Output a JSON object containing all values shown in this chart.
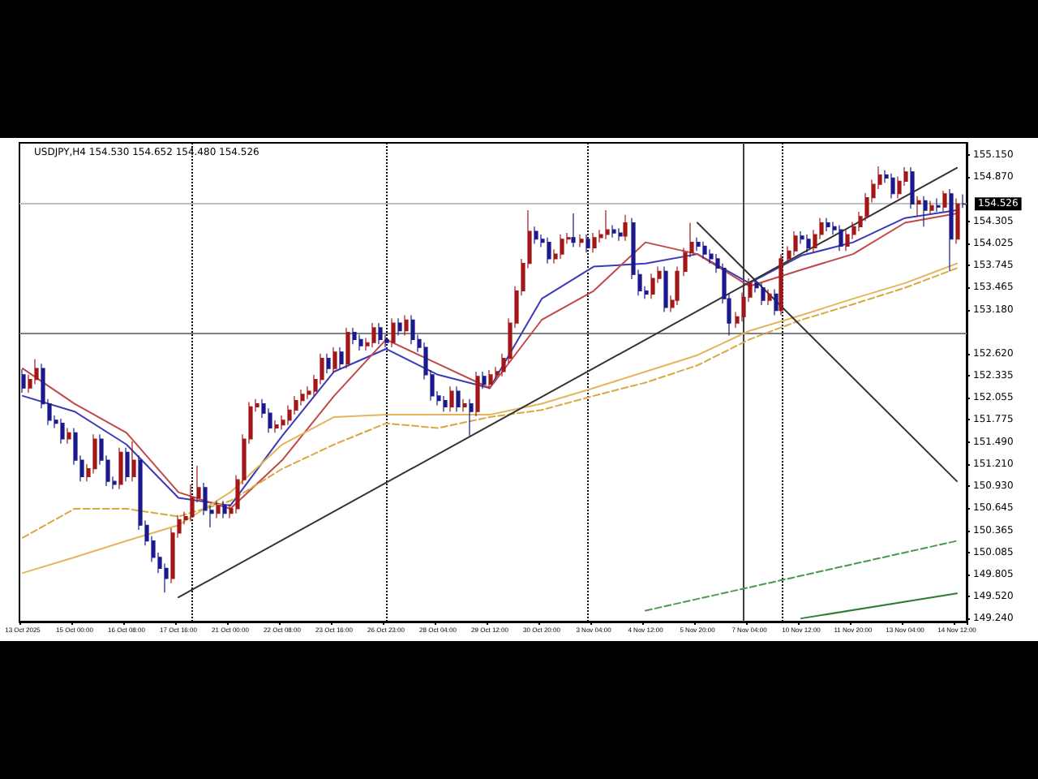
{
  "chart_data": {
    "type": "candlestick",
    "title": "USDJPY,H4 154.530 154.652 154.480 154.526",
    "categories": [
      "13 Oct 2025",
      null,
      null,
      null,
      null,
      null,
      null,
      null,
      "15 Oct 00:00",
      null,
      null,
      null,
      null,
      null,
      null,
      null,
      "16 Oct 08:00",
      null,
      null,
      null,
      null,
      null,
      null,
      null,
      "17 Oct 16:00",
      null,
      null,
      null,
      null,
      null,
      null,
      null,
      "21 Oct 00:00",
      null,
      null,
      null,
      null,
      null,
      null,
      null,
      "22 Oct 08:00",
      null,
      null,
      null,
      null,
      null,
      null,
      null,
      "23 Oct 16:00",
      null,
      null,
      null,
      null,
      null,
      null,
      null,
      "26 Oct 23:00",
      null,
      null,
      null,
      null,
      null,
      null,
      null,
      "28 Oct 04:00",
      null,
      null,
      null,
      null,
      null,
      null,
      null,
      "29 Oct 12:00",
      null,
      null,
      null,
      null,
      null,
      null,
      null,
      "30 Oct 20:00",
      null,
      null,
      null,
      null,
      null,
      null,
      null,
      "3 Nov 04:00",
      null,
      null,
      null,
      null,
      null,
      null,
      null,
      "4 Nov 12:00",
      null,
      null,
      null,
      null,
      null,
      null,
      null,
      "5 Nov 20:00",
      null,
      null,
      null,
      null,
      null,
      null,
      null,
      "7 Nov 04:00",
      null,
      null,
      null,
      null,
      null,
      null,
      null,
      "10 Nov 12:00",
      null,
      null,
      null,
      null,
      null,
      null,
      null,
      "11 Nov 20:00",
      null,
      null,
      null,
      null,
      null,
      null,
      null,
      "13 Nov 04:00",
      null,
      null,
      null,
      null,
      null,
      null,
      null,
      "14 Nov 12:00",
      null
    ],
    "colors": [
      "#1a1a8c",
      "#a01818",
      "#a01818",
      "#1a1a8c",
      "#1a1a8c",
      "#1a1a8c",
      "#1a1a8c",
      "#a01818",
      "#1a1a8c",
      "#1a1a8c",
      "#a01818",
      "#a01818",
      "#1a1a8c",
      "#1a1a8c",
      "#1a1a8c",
      "#a01818",
      "#1a1a8c",
      "#a01818",
      "#1a1a8c",
      "#1a1a8c",
      "#1a1a8c",
      "#1a1a8c",
      "#1a1a8c",
      "#a01818",
      "#a01818",
      "#a01818",
      "#a01818",
      "#a01818",
      "#1a1a8c",
      "#1a1a8c",
      "#a01818",
      "#1a1a8c",
      "#a01818",
      "#a01818",
      "#a01818",
      "#a01818",
      "#a01818",
      "#1a1a8c",
      "#1a1a8c",
      "#a01818",
      "#a01818",
      "#a01818",
      "#a01818",
      "#a01818",
      "#a01818",
      "#a01818",
      "#a01818",
      "#1a1a8c",
      "#a01818",
      "#1a1a8c",
      "#a01818",
      "#1a1a8c",
      "#1a1a8c",
      "#a01818",
      "#a01818",
      "#1a1a8c",
      "#1a1a8c",
      "#a01818",
      "#1a1a8c",
      "#a01818",
      "#1a1a8c",
      "#1a1a8c",
      "#1a1a8c",
      "#1a1a8c",
      "#1a1a8c",
      "#1a1a8c",
      "#a01818",
      "#1a1a8c",
      "#a01818",
      "#1a1a8c",
      "#a01818",
      "#1a1a8c",
      "#a01818",
      "#a01818",
      "#a01818",
      "#a01818",
      "#a01818",
      "#a01818",
      "#a01818",
      "#1a1a8c",
      "#1a1a8c",
      "#1a1a8c",
      "#a01818",
      "#a01818",
      "#a01818",
      "#1a1a8c",
      "#a01818",
      "#1a1a8c",
      "#a01818",
      "#a01818",
      "#a01818",
      "#1a1a8c",
      "#1a1a8c",
      "#a01818",
      "#1a1a8c",
      "#1a1a8c",
      "#1a1a8c",
      "#a01818",
      "#a01818",
      "#1a1a8c",
      "#a01818",
      "#a01818",
      "#a01818",
      "#a01818",
      "#1a1a8c",
      "#1a1a8c",
      "#1a1a8c",
      "#1a1a8c",
      "#1a1a8c",
      "#1a1a8c",
      "#a01818",
      "#a01818",
      "#a01818",
      "#1a1a8c",
      "#1a1a8c",
      "#a01818",
      "#1a1a8c",
      "#a01818",
      "#a01818",
      "#a01818",
      "#1a1a8c",
      "#1a1a8c",
      "#a01818",
      "#a01818",
      "#1a1a8c",
      "#1a1a8c",
      "#1a1a8c",
      "#a01818",
      "#a01818",
      "#a01818",
      "#a01818",
      "#a01818",
      "#a01818",
      "#1a1a8c",
      "#1a1a8c",
      "#a01818",
      "#a01818",
      "#1a1a8c",
      "#a01818",
      "#1a1a8c",
      "#a01818",
      "#1a1a8c",
      "#a01818",
      "#1a1a8c",
      "#a01818",
      "#1a1a8c"
    ],
    "ohlc": [
      [
        152.35,
        152.42,
        152.12,
        152.18
      ],
      [
        152.18,
        152.35,
        152.12,
        152.29
      ],
      [
        152.29,
        152.55,
        152.23,
        152.43
      ],
      [
        152.43,
        152.49,
        151.92,
        151.98
      ],
      [
        151.98,
        152.04,
        151.71,
        151.77
      ],
      [
        151.77,
        151.83,
        151.67,
        151.73
      ],
      [
        151.73,
        151.79,
        151.47,
        151.53
      ],
      [
        151.53,
        151.67,
        151.47,
        151.61
      ],
      [
        151.61,
        151.67,
        151.2,
        151.26
      ],
      [
        151.26,
        151.32,
        150.99,
        151.05
      ],
      [
        151.05,
        151.21,
        150.99,
        151.15
      ],
      [
        151.15,
        151.59,
        151.09,
        151.53
      ],
      [
        151.53,
        151.59,
        151.2,
        151.26
      ],
      [
        151.26,
        151.32,
        150.93,
        150.99
      ],
      [
        150.99,
        151.05,
        150.89,
        150.95
      ],
      [
        150.95,
        151.42,
        150.89,
        151.36
      ],
      [
        151.36,
        151.42,
        150.99,
        151.05
      ],
      [
        151.05,
        151.5,
        150.99,
        151.26
      ],
      [
        151.26,
        151.32,
        150.37,
        150.43
      ],
      [
        150.43,
        150.49,
        150.17,
        150.23
      ],
      [
        150.23,
        150.29,
        149.96,
        150.02
      ],
      [
        150.02,
        150.08,
        149.82,
        149.88
      ],
      [
        149.88,
        149.94,
        149.57,
        149.75
      ],
      [
        149.75,
        150.39,
        149.69,
        150.33
      ],
      [
        150.33,
        150.56,
        150.27,
        150.5
      ],
      [
        150.5,
        150.6,
        150.44,
        150.54
      ],
      [
        150.54,
        150.95,
        150.48,
        150.78
      ],
      [
        150.78,
        151.19,
        150.72,
        150.91
      ],
      [
        150.91,
        150.97,
        150.56,
        150.62
      ],
      [
        150.62,
        150.68,
        150.4,
        150.58
      ],
      [
        150.58,
        150.74,
        150.52,
        150.68
      ],
      [
        150.68,
        150.74,
        150.52,
        150.58
      ],
      [
        150.58,
        150.7,
        150.52,
        150.64
      ],
      [
        150.64,
        151.07,
        150.58,
        151.01
      ],
      [
        151.01,
        151.59,
        150.95,
        151.53
      ],
      [
        151.53,
        152.0,
        151.47,
        151.94
      ],
      [
        151.94,
        152.04,
        151.88,
        151.98
      ],
      [
        151.98,
        152.04,
        151.8,
        151.86
      ],
      [
        151.86,
        151.92,
        151.61,
        151.67
      ],
      [
        151.67,
        151.77,
        151.61,
        151.71
      ],
      [
        151.71,
        151.83,
        151.65,
        151.77
      ],
      [
        151.77,
        151.96,
        151.71,
        151.9
      ],
      [
        151.9,
        152.08,
        151.84,
        152.02
      ],
      [
        152.02,
        152.16,
        151.96,
        152.1
      ],
      [
        152.1,
        152.2,
        152.04,
        152.14
      ],
      [
        152.14,
        152.35,
        152.08,
        152.29
      ],
      [
        152.29,
        152.62,
        152.23,
        152.56
      ],
      [
        152.56,
        152.62,
        152.37,
        152.43
      ],
      [
        152.43,
        152.7,
        152.37,
        152.64
      ],
      [
        152.64,
        152.7,
        152.43,
        152.49
      ],
      [
        152.49,
        152.95,
        152.43,
        152.89
      ],
      [
        152.89,
        152.95,
        152.74,
        152.8
      ],
      [
        152.8,
        152.86,
        152.66,
        152.72
      ],
      [
        152.72,
        152.82,
        152.66,
        152.76
      ],
      [
        152.76,
        153.01,
        152.7,
        152.95
      ],
      [
        152.95,
        153.01,
        152.74,
        152.8
      ],
      [
        152.8,
        152.86,
        152.7,
        152.76
      ],
      [
        152.76,
        153.07,
        152.7,
        153.01
      ],
      [
        153.01,
        153.07,
        152.85,
        152.91
      ],
      [
        152.91,
        153.11,
        152.85,
        153.05
      ],
      [
        153.05,
        153.11,
        152.74,
        152.8
      ],
      [
        152.8,
        152.86,
        152.64,
        152.7
      ],
      [
        152.7,
        152.76,
        152.29,
        152.35
      ],
      [
        152.35,
        152.41,
        152.02,
        152.08
      ],
      [
        152.08,
        152.14,
        151.96,
        152.02
      ],
      [
        152.02,
        152.08,
        151.88,
        151.94
      ],
      [
        151.94,
        152.2,
        151.88,
        152.14
      ],
      [
        152.14,
        152.2,
        151.88,
        151.94
      ],
      [
        151.94,
        152.04,
        151.88,
        151.98
      ],
      [
        151.98,
        152.04,
        151.57,
        151.88
      ],
      [
        151.88,
        152.39,
        151.82,
        152.33
      ],
      [
        152.33,
        152.39,
        152.17,
        152.23
      ],
      [
        152.23,
        152.41,
        152.17,
        152.35
      ],
      [
        152.35,
        152.45,
        152.29,
        152.39
      ],
      [
        152.39,
        152.62,
        152.33,
        152.56
      ],
      [
        152.56,
        153.07,
        152.5,
        153.01
      ],
      [
        153.01,
        153.48,
        152.95,
        153.42
      ],
      [
        153.42,
        153.83,
        153.36,
        153.77
      ],
      [
        153.77,
        154.45,
        153.71,
        154.18
      ],
      [
        154.18,
        154.24,
        154.02,
        154.08
      ],
      [
        154.08,
        154.14,
        153.98,
        154.04
      ],
      [
        154.04,
        154.1,
        153.77,
        153.83
      ],
      [
        153.83,
        153.95,
        153.77,
        153.89
      ],
      [
        153.89,
        154.14,
        153.83,
        154.08
      ],
      [
        154.08,
        154.16,
        154.02,
        154.1
      ],
      [
        154.1,
        154.41,
        153.98,
        154.04
      ],
      [
        154.04,
        154.14,
        153.98,
        154.08
      ],
      [
        154.08,
        154.14,
        153.91,
        153.97
      ],
      [
        153.97,
        154.16,
        153.91,
        154.1
      ],
      [
        154.1,
        154.2,
        154.04,
        154.14
      ],
      [
        154.14,
        154.45,
        154.08,
        154.2
      ],
      [
        154.2,
        154.26,
        154.1,
        154.16
      ],
      [
        154.16,
        154.22,
        154.06,
        154.12
      ],
      [
        154.12,
        154.39,
        154.06,
        154.29
      ],
      [
        154.29,
        154.35,
        153.57,
        153.63
      ],
      [
        153.63,
        153.69,
        153.36,
        153.42
      ],
      [
        153.42,
        153.48,
        153.32,
        153.38
      ],
      [
        153.38,
        153.64,
        153.32,
        153.58
      ],
      [
        153.58,
        153.73,
        153.52,
        153.67
      ],
      [
        153.67,
        153.73,
        153.15,
        153.21
      ],
      [
        153.21,
        153.36,
        153.15,
        153.3
      ],
      [
        153.3,
        153.73,
        153.24,
        153.67
      ],
      [
        153.67,
        153.97,
        153.61,
        153.91
      ],
      [
        153.91,
        154.29,
        153.85,
        154.04
      ],
      [
        154.04,
        154.1,
        153.93,
        153.99
      ],
      [
        153.99,
        154.05,
        153.83,
        153.89
      ],
      [
        153.89,
        153.95,
        153.77,
        153.83
      ],
      [
        153.83,
        153.89,
        153.65,
        153.71
      ],
      [
        153.71,
        153.77,
        153.26,
        153.32
      ],
      [
        153.32,
        153.38,
        152.85,
        153.01
      ],
      [
        153.01,
        153.15,
        152.95,
        153.09
      ],
      [
        153.09,
        153.4,
        153.03,
        153.34
      ],
      [
        153.34,
        153.58,
        153.28,
        153.52
      ],
      [
        153.52,
        153.58,
        153.4,
        153.46
      ],
      [
        153.46,
        153.52,
        153.24,
        153.3
      ],
      [
        153.3,
        153.44,
        153.24,
        153.38
      ],
      [
        153.38,
        153.44,
        153.11,
        153.17
      ],
      [
        153.17,
        153.89,
        153.11,
        153.83
      ],
      [
        153.83,
        153.99,
        153.77,
        153.93
      ],
      [
        153.93,
        154.18,
        153.87,
        154.12
      ],
      [
        154.12,
        154.18,
        154.02,
        154.08
      ],
      [
        154.08,
        154.14,
        153.91,
        153.97
      ],
      [
        153.97,
        154.2,
        153.91,
        154.14
      ],
      [
        154.14,
        154.35,
        154.08,
        154.29
      ],
      [
        154.29,
        154.35,
        154.18,
        154.24
      ],
      [
        154.24,
        154.3,
        154.14,
        154.2
      ],
      [
        154.2,
        154.26,
        153.93,
        153.99
      ],
      [
        153.99,
        154.2,
        153.93,
        154.14
      ],
      [
        154.14,
        154.3,
        154.08,
        154.24
      ],
      [
        154.24,
        154.43,
        154.18,
        154.37
      ],
      [
        154.37,
        154.67,
        154.31,
        154.61
      ],
      [
        154.61,
        154.84,
        154.55,
        154.78
      ],
      [
        154.78,
        155.01,
        154.72,
        154.9
      ],
      [
        154.9,
        154.96,
        154.8,
        154.86
      ],
      [
        154.86,
        154.92,
        154.6,
        154.66
      ],
      [
        154.66,
        154.88,
        154.6,
        154.82
      ],
      [
        154.82,
        155.0,
        154.76,
        154.94
      ],
      [
        154.94,
        155.0,
        154.47,
        154.53
      ],
      [
        154.53,
        154.63,
        154.37,
        154.57
      ],
      [
        154.57,
        154.63,
        154.24,
        154.45
      ],
      [
        154.45,
        154.57,
        154.39,
        154.51
      ],
      [
        154.51,
        154.6,
        154.43,
        154.49
      ],
      [
        154.49,
        154.7,
        154.43,
        154.66
      ],
      [
        154.66,
        154.72,
        153.67,
        154.08
      ],
      [
        154.08,
        154.6,
        154.02,
        154.53
      ],
      [
        154.53,
        154.652,
        154.48,
        154.526
      ]
    ],
    "series": [
      {
        "type": "line",
        "color": "#3a3ab8",
        "line_style": "solid",
        "x": [
          "13 Oct 2025",
          "15 Oct 00:00",
          "16 Oct 08:00",
          "17 Oct 16:00",
          "21 Oct 00:00",
          "22 Oct 08:00",
          "23 Oct 16:00",
          "26 Oct 23:00",
          "28 Oct 04:00",
          "29 Oct 12:00",
          "30 Oct 20:00",
          "3 Nov 04:00",
          "4 Nov 12:00",
          "5 Nov 20:00",
          "7 Nov 04:00",
          "10 Nov 12:00",
          "11 Nov 20:00",
          "13 Nov 04:00",
          "14 Nov 12:00"
        ],
        "values": [
          152.08,
          151.88,
          151.46,
          150.78,
          150.68,
          151.57,
          152.39,
          152.68,
          152.35,
          152.18,
          153.32,
          153.73,
          153.77,
          153.89,
          153.52,
          153.87,
          154.04,
          154.35,
          154.45
        ]
      },
      {
        "type": "line",
        "color": "#c04848",
        "line_style": "solid",
        "x": [
          "13 Oct 2025",
          "15 Oct 00:00",
          "16 Oct 08:00",
          "17 Oct 16:00",
          "21 Oct 00:00",
          "22 Oct 08:00",
          "23 Oct 16:00",
          "26 Oct 23:00",
          "28 Oct 04:00",
          "29 Oct 12:00",
          "30 Oct 20:00",
          "3 Nov 04:00",
          "4 Nov 12:00",
          "5 Nov 20:00",
          "7 Nov 04:00",
          "10 Nov 12:00",
          "11 Nov 20:00",
          "13 Nov 04:00",
          "14 Nov 12:00"
        ],
        "values": [
          152.43,
          151.98,
          151.61,
          150.85,
          150.64,
          151.26,
          152.08,
          152.8,
          152.49,
          152.18,
          153.05,
          153.42,
          154.04,
          153.89,
          153.48,
          153.69,
          153.89,
          154.29,
          154.41
        ]
      },
      {
        "type": "line",
        "color": "#e3b65c",
        "line_style": "solid",
        "x": [
          "13 Oct 2025",
          "15 Oct 00:00",
          "16 Oct 08:00",
          "17 Oct 16:00",
          "21 Oct 00:00",
          "22 Oct 08:00",
          "23 Oct 16:00",
          "26 Oct 23:00",
          "28 Oct 04:00",
          "29 Oct 12:00",
          "30 Oct 20:00",
          "3 Nov 04:00",
          "4 Nov 12:00",
          "5 Nov 20:00",
          "7 Nov 04:00",
          "10 Nov 12:00",
          "11 Nov 20:00",
          "13 Nov 04:00",
          "14 Nov 12:00"
        ],
        "values": [
          149.82,
          150.02,
          150.23,
          150.43,
          150.85,
          151.46,
          151.81,
          151.84,
          151.84,
          151.84,
          151.98,
          152.18,
          152.39,
          152.6,
          152.91,
          153.11,
          153.32,
          153.52,
          153.77
        ]
      },
      {
        "type": "line",
        "color": "#d9a840",
        "line_style": "dashed",
        "x": [
          "13 Oct 2025",
          "15 Oct 00:00",
          "16 Oct 08:00",
          "17 Oct 16:00",
          "21 Oct 00:00",
          "22 Oct 08:00",
          "23 Oct 16:00",
          "26 Oct 23:00",
          "28 Oct 04:00",
          "29 Oct 12:00",
          "30 Oct 20:00",
          "3 Nov 04:00",
          "4 Nov 12:00",
          "5 Nov 20:00",
          "7 Nov 04:00",
          "10 Nov 12:00",
          "11 Nov 20:00",
          "13 Nov 04:00",
          "14 Nov 12:00"
        ],
        "values": [
          150.27,
          150.64,
          150.64,
          150.54,
          150.74,
          151.15,
          151.46,
          151.73,
          151.67,
          151.81,
          151.9,
          152.08,
          152.25,
          152.47,
          152.8,
          153.05,
          153.25,
          153.46,
          153.71
        ]
      },
      {
        "type": "line",
        "color": "#333333",
        "line_style": "solid",
        "x": [
          "17 Oct 16:00",
          "14 Nov 12:00"
        ],
        "values": [
          149.51,
          154.99
        ]
      },
      {
        "type": "line",
        "color": "#333333",
        "line_style": "solid",
        "x": [
          "5 Nov 20:00",
          "14 Nov 12:00"
        ],
        "values": [
          154.29,
          150.99
        ]
      },
      {
        "type": "line",
        "color": "#4a9a4a",
        "line_style": "dashed",
        "x": [
          "4 Nov 12:00",
          "14 Nov 12:00"
        ],
        "values": [
          149.34,
          150.23
        ]
      },
      {
        "type": "line",
        "color": "#2e7d32",
        "line_style": "solid",
        "x": [
          "10 Nov 12:00",
          "14 Nov 12:00"
        ],
        "values": [
          149.24,
          149.56
        ]
      }
    ],
    "ylim": [
      149.2,
      155.31
    ],
    "yticks": [
      {
        "value": 155.15,
        "label": "155.150"
      },
      {
        "value": 154.87,
        "label": "154.870"
      },
      {
        "value": 154.305,
        "label": "154.305"
      },
      {
        "value": 154.025,
        "label": "154.025"
      },
      {
        "value": 153.745,
        "label": "153.745"
      },
      {
        "value": 153.465,
        "label": "153.465"
      },
      {
        "value": 153.18,
        "label": "153.180"
      },
      {
        "value": 152.62,
        "label": "152.620"
      },
      {
        "value": 152.335,
        "label": "152.335"
      },
      {
        "value": 152.055,
        "label": "152.055"
      },
      {
        "value": 151.775,
        "label": "151.775"
      },
      {
        "value": 151.49,
        "label": "151.490"
      },
      {
        "value": 151.21,
        "label": "151.210"
      },
      {
        "value": 150.93,
        "label": "150.930"
      },
      {
        "value": 150.645,
        "label": "150.645"
      },
      {
        "value": 150.365,
        "label": "150.365"
      },
      {
        "value": 150.085,
        "label": "150.085"
      },
      {
        "value": 149.805,
        "label": "149.805"
      },
      {
        "value": 149.52,
        "label": "149.520"
      },
      {
        "value": 149.24,
        "label": "149.240"
      }
    ],
    "ref_lines": [
      {
        "axis": "y",
        "value": 154.526,
        "label": "154.526",
        "color": "#c0c0c0",
        "line_style": "solid"
      },
      {
        "axis": "y",
        "value": 152.88,
        "color": "#808080",
        "line_style": "solid"
      }
    ]
  }
}
